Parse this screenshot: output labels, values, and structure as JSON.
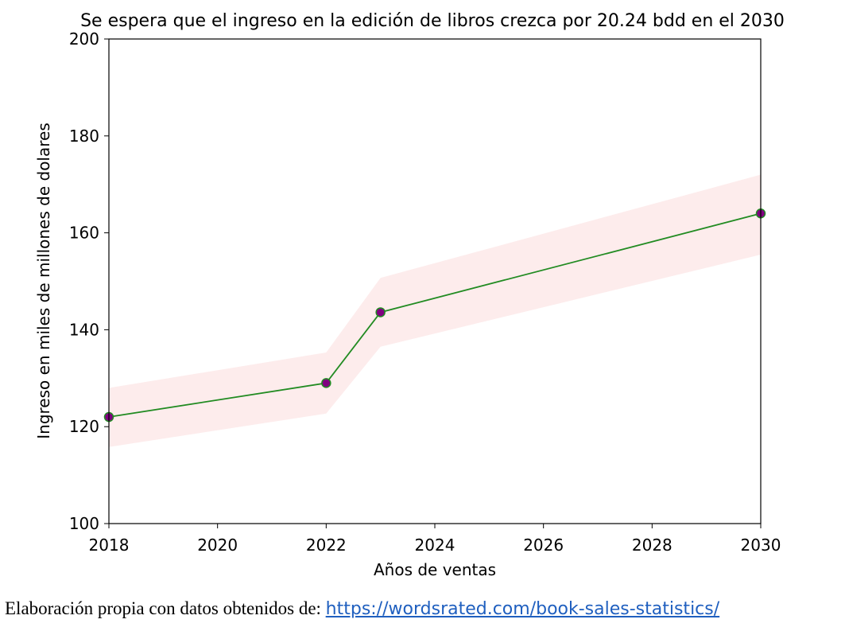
{
  "chart_data": {
    "type": "line",
    "title": "Se espera que el ingreso en la edición de libros crezca por 20.24 bdd en el 2030",
    "xlabel": "Años de ventas",
    "ylabel": "Ingreso en miles de millones de dolares",
    "xlim": [
      2018,
      2030
    ],
    "ylim": [
      100,
      200
    ],
    "xticks": [
      "2018",
      "2020",
      "2022",
      "2024",
      "2026",
      "2028",
      "2030"
    ],
    "yticks": [
      "100",
      "120",
      "140",
      "160",
      "180",
      "200"
    ],
    "grid": false,
    "series": [
      {
        "x": [
          2018,
          2022,
          2023,
          2030
        ],
        "y": [
          122,
          129,
          143.6,
          164
        ],
        "band_upper": [
          128,
          135.3,
          150.7,
          172
        ],
        "band_lower": [
          115.8,
          122.7,
          136.5,
          155.5
        ],
        "line_color": "#228b22",
        "marker_color": "#800080",
        "band_color": "#fdecec"
      }
    ]
  },
  "caption": {
    "text": "Elaboración propia con datos obtenidos de: ",
    "link": "https://wordsrated.com/book-sales-statistics/"
  }
}
